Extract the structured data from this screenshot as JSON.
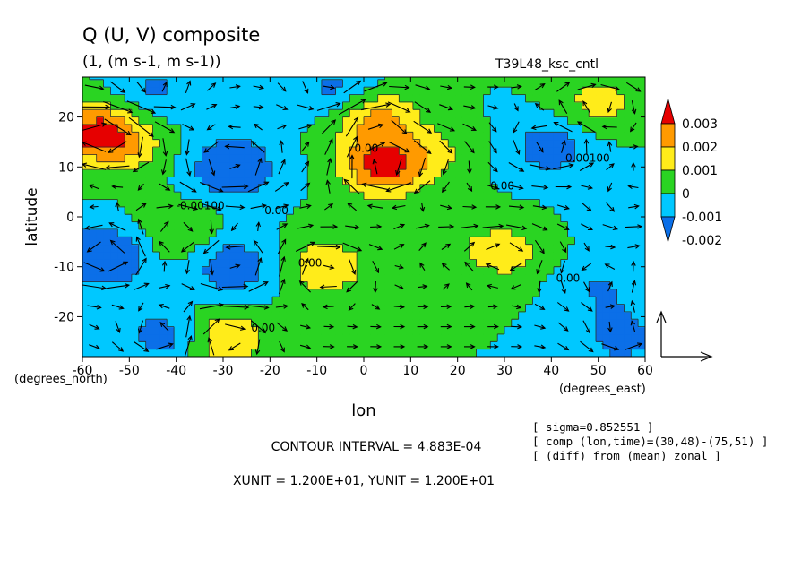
{
  "chart_data": {
    "type": "heatmap",
    "title": "Q (U, V) composite",
    "subtitle": "(1, (m s-1, m s-1))",
    "run_label": "T39L48_ksc_cntl",
    "xlabel": "lon",
    "ylabel": "latitude",
    "x_unit_label": "(degrees_east)",
    "y_unit_label": "(degrees_north)",
    "xlim": [
      -60,
      60
    ],
    "ylim": [
      -28,
      28
    ],
    "x_ticks": [
      -60,
      -50,
      -40,
      -30,
      -20,
      -10,
      0,
      10,
      20,
      30,
      40,
      50,
      60
    ],
    "y_ticks": [
      -20,
      -10,
      0,
      10,
      20
    ],
    "x_tick_labels": [
      "-60",
      "-50",
      "-40",
      "-30",
      "-20",
      "-10",
      "0",
      "10",
      "20",
      "30",
      "40",
      "50",
      "60"
    ],
    "y_tick_labels": [
      "-20",
      "-10",
      "0",
      "10",
      "20"
    ],
    "legend_placement": "right",
    "legend": {
      "labels": [
        "0.003",
        "0.002",
        "0.001",
        "0",
        "-0.001",
        "-0.002"
      ],
      "levels": [
        -0.002,
        -0.001,
        0,
        0.001,
        0.002,
        0.003
      ],
      "colors": [
        "#0b6fe8",
        "#00c8ff",
        "#2ad422",
        "#ffec1a",
        "#ff9a00",
        "#e60000"
      ]
    },
    "contour_labels": [
      "-0.00100",
      "-0.00",
      "0.00",
      "0.00100",
      "0.00",
      "0.00",
      "0.00",
      "0.00"
    ],
    "contour_interval_text": "CONTOUR INTERVAL = 4.883E-04",
    "unit_text": "XUNIT = 1.200E+01, YUNIT = 1.200E+01",
    "info_lines": [
      "[ sigma=0.852551 ]",
      "[ comp (lon,time)=(30,48)-(75,51) ]",
      "[ (diff) from (mean) zonal ]"
    ],
    "field": {
      "unit": "1",
      "centers": [
        {
          "lon": -57,
          "lat": 17,
          "value": 0.0032
        },
        {
          "lon": -50,
          "lat": 14,
          "value": 0.0012
        },
        {
          "lon": -28,
          "lat": 10,
          "value": -0.0022
        },
        {
          "lon": -45,
          "lat": 25,
          "value": -0.0012
        },
        {
          "lon": -5,
          "lat": 25,
          "value": -0.0015
        },
        {
          "lon": 4,
          "lat": 10,
          "value": 0.0032
        },
        {
          "lon": 2,
          "lat": 20,
          "value": 0.0024
        },
        {
          "lon": 15,
          "lat": 13,
          "value": 0.001
        },
        {
          "lon": 50,
          "lat": 23,
          "value": 0.0014
        },
        {
          "lon": 40,
          "lat": 14,
          "value": -0.0016
        },
        {
          "lon": 57,
          "lat": 2,
          "value": -0.0009
        },
        {
          "lon": -55,
          "lat": -8,
          "value": -0.0024
        },
        {
          "lon": -28,
          "lat": -10,
          "value": -0.0018
        },
        {
          "lon": -40,
          "lat": -3,
          "value": 0.001
        },
        {
          "lon": -8,
          "lat": -10,
          "value": 0.0018
        },
        {
          "lon": 30,
          "lat": -7,
          "value": 0.0015
        },
        {
          "lon": 15,
          "lat": -5,
          "value": 0.0006
        },
        {
          "lon": -42,
          "lat": -24,
          "value": -0.0016
        },
        {
          "lon": -30,
          "lat": -24,
          "value": 0.002
        },
        {
          "lon": 55,
          "lat": -24,
          "value": -0.0014
        },
        {
          "lon": 50,
          "lat": -14,
          "value": -0.001
        }
      ],
      "background": -0.0005
    },
    "reference_vector": {
      "xunit": 12.0,
      "yunit": 12.0
    }
  }
}
